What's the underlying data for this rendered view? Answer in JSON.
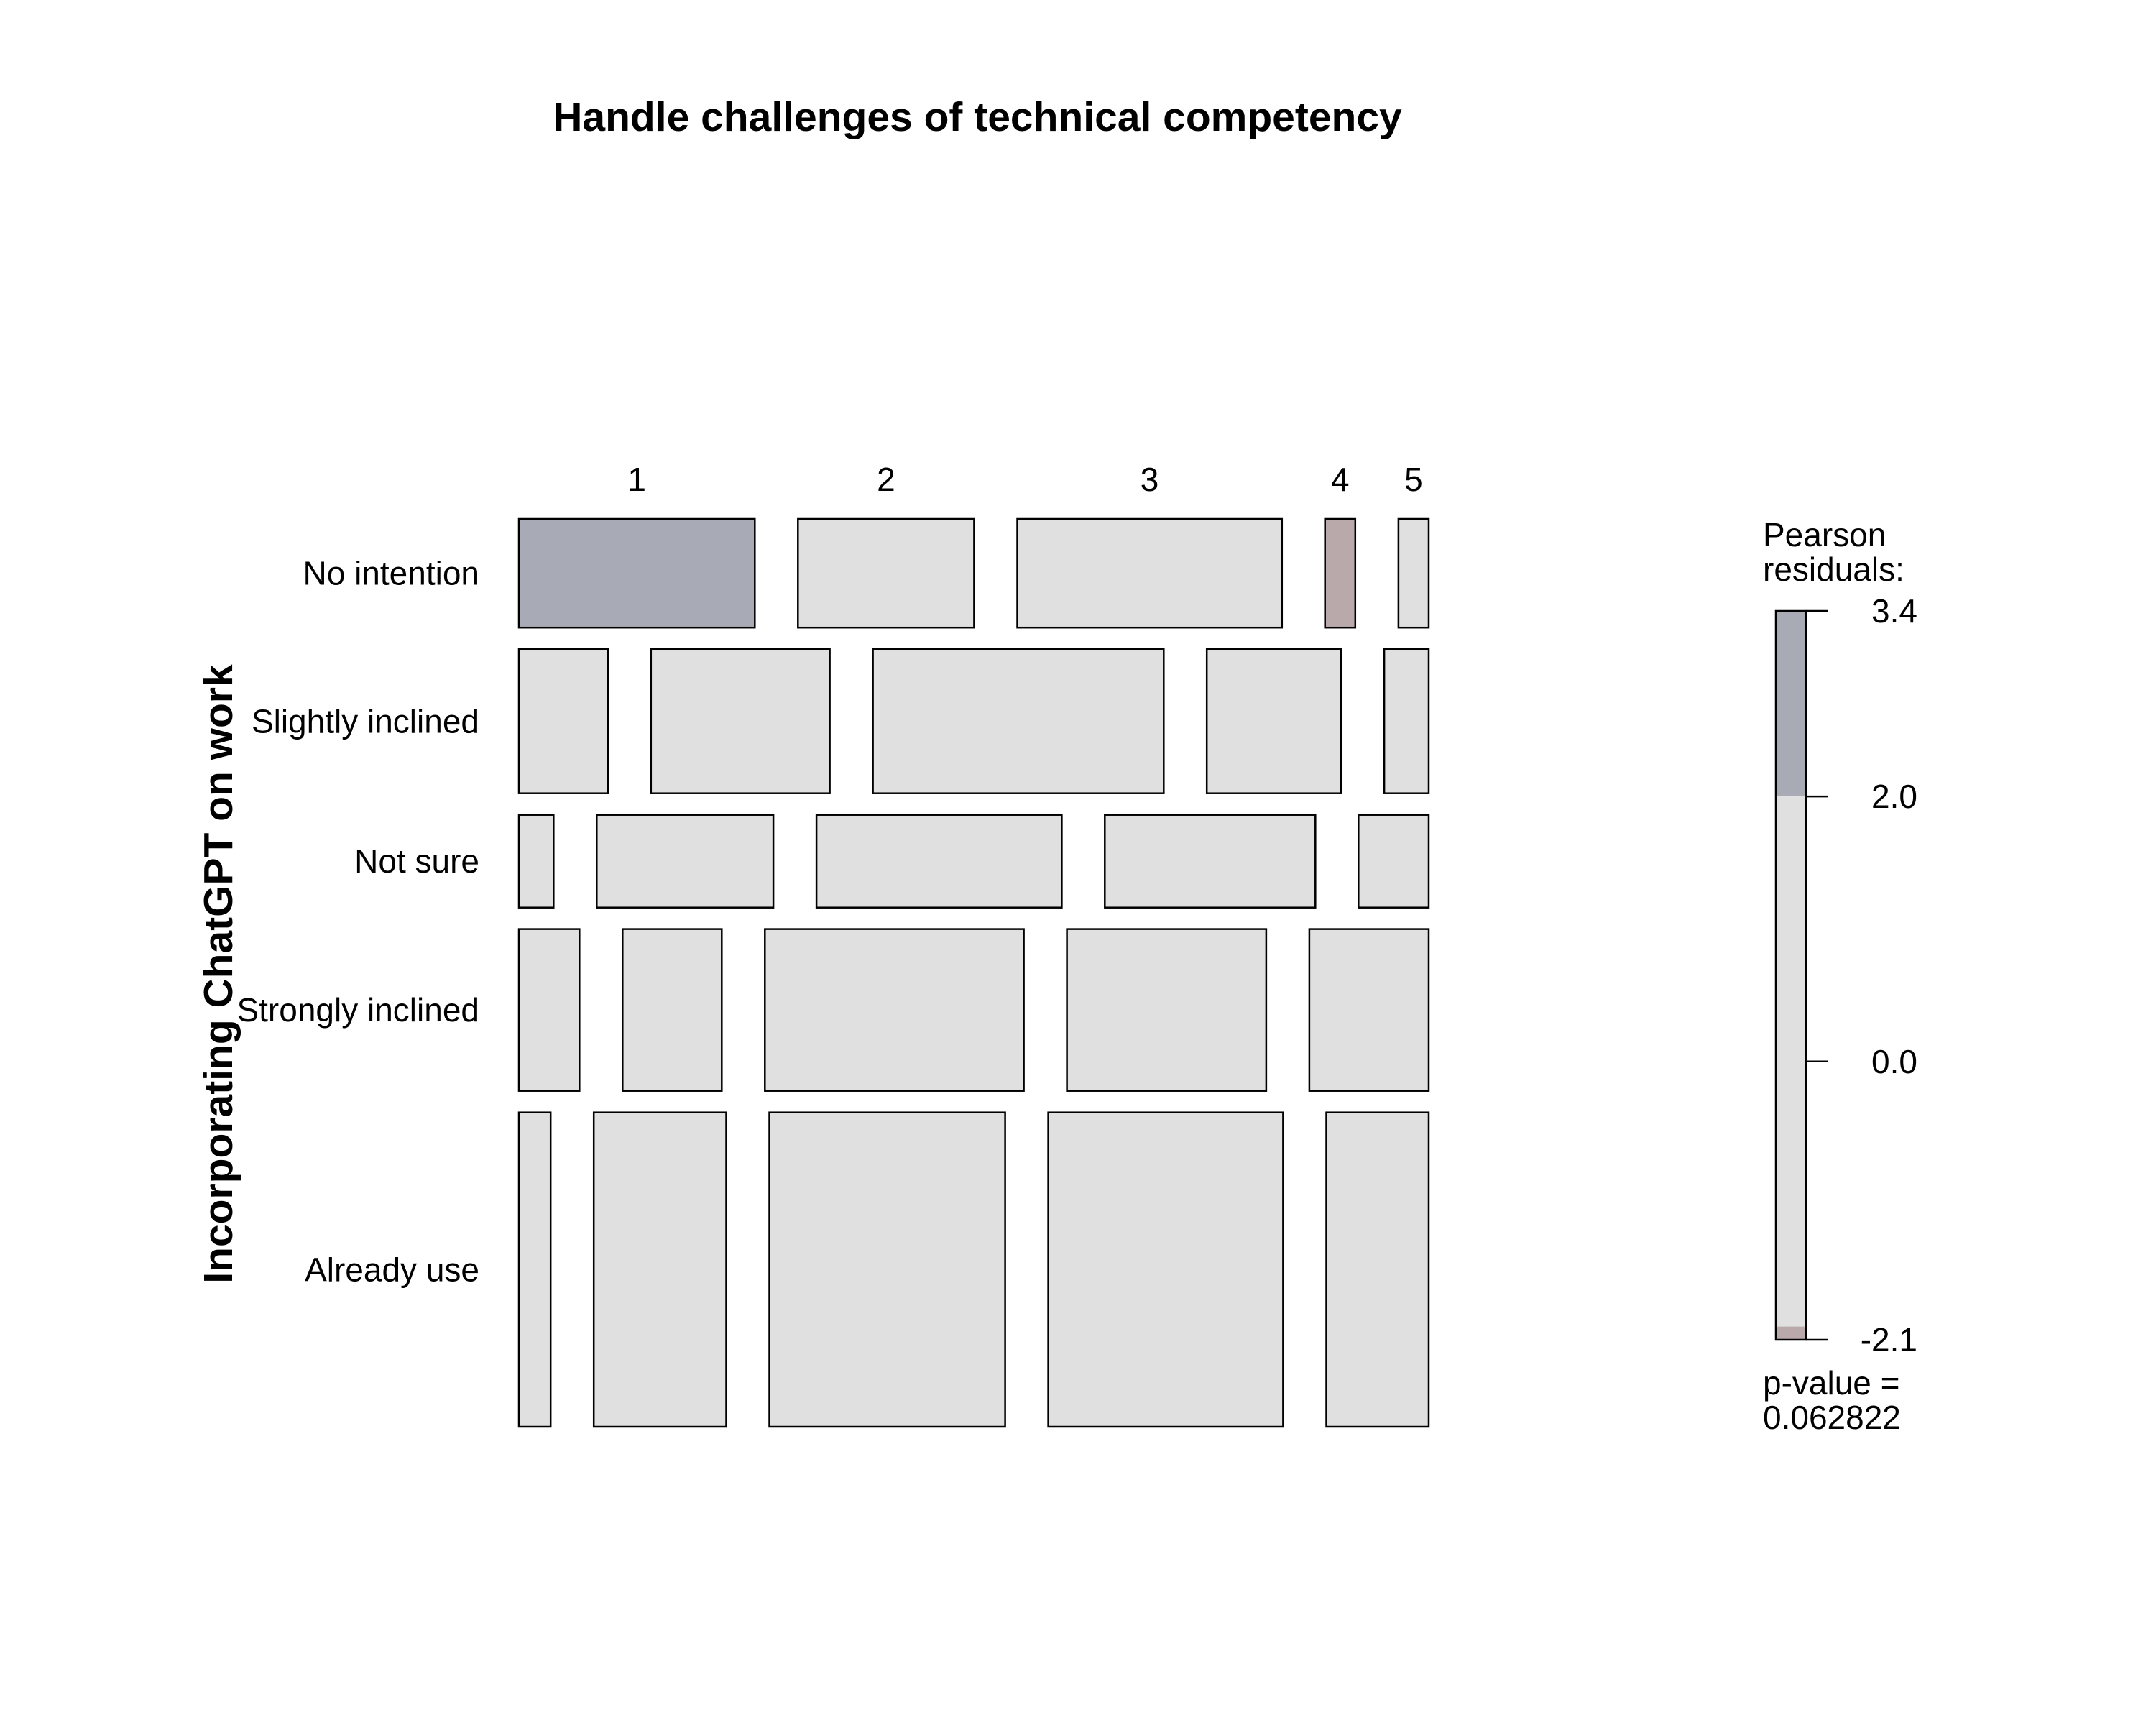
{
  "chart_data": {
    "type": "mosaic",
    "title": "Handle challenges of technical competency",
    "xlabel": "",
    "ylabel": "Incorporating ChatGPT on work",
    "x_categories": [
      "1",
      "2",
      "3",
      "4",
      "5"
    ],
    "y_categories": [
      "No intention",
      "Slightly inclined",
      "Not sure",
      "Strongly inclined",
      "Already use"
    ],
    "row_proportions": [
      0.129,
      0.171,
      0.11,
      0.192,
      0.373
    ],
    "cell_proportions": [
      [
        0.296,
        0.221,
        0.332,
        0.038,
        0.038
      ],
      [
        0.108,
        0.217,
        0.353,
        0.163,
        0.054
      ],
      [
        0.045,
        0.229,
        0.318,
        0.273,
        0.091
      ],
      [
        0.069,
        0.113,
        0.295,
        0.227,
        0.136
      ],
      [
        0.036,
        0.15,
        0.267,
        0.266,
        0.116
      ]
    ],
    "residual_shading": [
      [
        "high",
        "neutral",
        "neutral",
        "low",
        "neutral"
      ],
      [
        "neutral",
        "neutral",
        "neutral",
        "neutral",
        "neutral"
      ],
      [
        "neutral",
        "neutral",
        "neutral",
        "neutral",
        "neutral"
      ],
      [
        "neutral",
        "neutral",
        "neutral",
        "neutral",
        "neutral"
      ],
      [
        "neutral",
        "neutral",
        "neutral",
        "neutral",
        "neutral"
      ]
    ],
    "colors": {
      "high": "#a8abb5",
      "neutral": "#e0e0e0",
      "low": "#b9a9aa",
      "border": "#000000"
    },
    "legend": {
      "title_line1": "Pearson",
      "title_line2": "residuals:",
      "ticks": [
        {
          "value": 3.4,
          "label": "3.4"
        },
        {
          "value": 2.0,
          "label": "2.0"
        },
        {
          "value": 0.0,
          "label": "0.0"
        },
        {
          "value": -2.1,
          "label": "-2.1"
        }
      ],
      "range": [
        -2.1,
        3.4
      ],
      "cut_high": 2.0,
      "cut_low": -2.0,
      "pvalue_line1": "p-value =",
      "pvalue_line2": "0.062822"
    }
  }
}
